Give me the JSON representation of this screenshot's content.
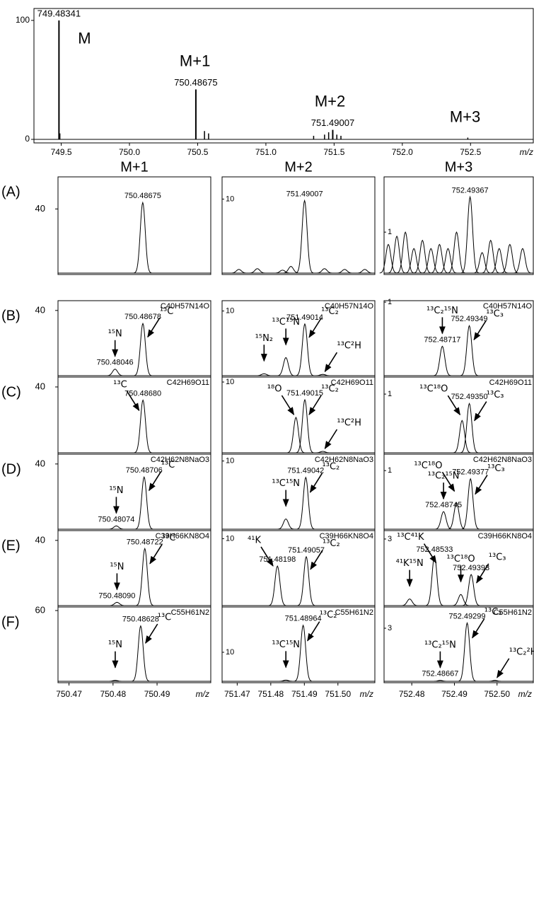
{
  "chart_data": [
    {
      "type": "stick",
      "xlim": [
        749.3,
        752.96
      ],
      "xticks": [
        749.5,
        {
          "value": 750,
          "label": "750.0"
        },
        750.5,
        {
          "value": 751,
          "label": "751.0"
        },
        751.5,
        {
          "value": 752,
          "label": "752.0"
        },
        752.5
      ],
      "xlabel": "m/z",
      "ylim": [
        0,
        110
      ],
      "yticks": [
        0,
        100
      ],
      "x": [
        749.48341,
        750.48675,
        751.49007
      ],
      "x_labels": [
        "749.48341",
        "750.48675",
        "751.49007"
      ],
      "values": [
        100,
        42,
        8
      ],
      "minor_x": [
        749.49,
        750.55,
        750.58,
        751.35,
        751.43,
        751.46,
        751.52,
        751.55,
        752.48
      ],
      "minor_values": [
        5,
        7,
        5,
        3,
        4,
        6,
        4,
        3,
        1.5
      ],
      "annotations": [
        {
          "text": "M",
          "x": 749.67,
          "y": 84
        },
        {
          "text": "M+1",
          "x": 750.48,
          "y": 65
        },
        {
          "text": "M+2",
          "x": 751.47,
          "y": 31
        },
        {
          "text": "M+3",
          "x": 752.46,
          "y": 18
        }
      ]
    },
    {
      "type": "peaks",
      "label": "(A)",
      "title": "M+1",
      "xlim": [
        750.4675,
        750.5022
      ],
      "ylim": [
        0,
        60
      ],
      "yticks": [
        40
      ],
      "x": [
        750.48675
      ],
      "x_labels": [
        "750.48675"
      ],
      "values": [
        44
      ],
      "minor_x": [],
      "minor_values": [],
      "annotations": []
    },
    {
      "type": "peaks",
      "title": "M+2",
      "xlim": [
        751.4655,
        751.511
      ],
      "ylim": [
        0,
        13
      ],
      "yticks": [
        10
      ],
      "x": [
        751.49007
      ],
      "x_labels": [
        "751.49007"
      ],
      "values": [
        9.8
      ],
      "minor_x": [
        751.4705,
        751.476,
        751.4835,
        751.486,
        751.496,
        751.502,
        751.508
      ],
      "minor_values": [
        0.5,
        0.6,
        0.4,
        0.9,
        0.6,
        0.5,
        0.5
      ],
      "annotations": []
    },
    {
      "type": "peaks",
      "title": "M+3",
      "xlim": [
        752.4735,
        752.5085
      ],
      "ylim": [
        0,
        2.35
      ],
      "yticks": [
        1
      ],
      "x": [
        752.49367
      ],
      "x_labels": [
        "752.49367"
      ],
      "values": [
        1.86
      ],
      "minor_x": [
        752.4745,
        752.4765,
        752.4785,
        752.4805,
        752.4825,
        752.4845,
        752.4865,
        752.4885,
        752.4905,
        752.4965,
        752.4985,
        752.5005,
        752.503,
        752.506
      ],
      "minor_values": [
        0.7,
        0.9,
        1.0,
        0.6,
        0.8,
        0.6,
        0.7,
        0.6,
        1.0,
        0.5,
        0.8,
        0.6,
        0.7,
        0.6
      ],
      "annotations": []
    },
    {
      "type": "peaks",
      "label": "(B)",
      "formula": "C40H57N14O",
      "xlim": [
        750.4675,
        750.5022
      ],
      "ylim": [
        0,
        46
      ],
      "yticks": [
        40
      ],
      "x": [
        750.48678,
        750.48046
      ],
      "x_labels": [
        "750.48678",
        "750.48046"
      ],
      "values": [
        32,
        4
      ],
      "minor_x": [],
      "minor_values": [],
      "annotations": [
        {
          "text": "¹⁵N",
          "x": 750.48046,
          "y": 4
        },
        {
          "text": "¹³C",
          "x": 750.4874,
          "y": 22
        }
      ]
    },
    {
      "type": "peaks",
      "formula": "C40H57N14O",
      "xlim": [
        751.4655,
        751.511
      ],
      "ylim": [
        0,
        11.6
      ],
      "yticks": [
        10
      ],
      "x": [
        751.49014
      ],
      "x_labels": [
        "751.49014"
      ],
      "values": [
        8
      ],
      "minor_x": [
        751.4845,
        751.478,
        751.4955
      ],
      "minor_values": [
        2.8,
        0.3,
        0.2
      ],
      "annotations": [
        {
          "text": "¹⁵N₂",
          "x": 751.478,
          "y": 0.3
        },
        {
          "text": "¹³C¹⁵N",
          "x": 751.4845,
          "y": 2.8
        },
        {
          "text": "¹³C₂",
          "x": 751.4908,
          "y": 5.5
        },
        {
          "text": "¹³C²H",
          "x": 751.4955,
          "y": 0.2
        }
      ]
    },
    {
      "type": "peaks",
      "formula": "C40H57N14O",
      "xlim": [
        752.4735,
        752.5085
      ],
      "ylim": [
        0,
        1.02
      ],
      "yticks": [
        1
      ],
      "x": [
        752.49349,
        752.48717
      ],
      "x_labels": [
        "752.49349",
        "752.48717"
      ],
      "values": [
        0.68,
        0.4
      ],
      "minor_x": [],
      "minor_values": [],
      "annotations": [
        {
          "text": "¹³C₂¹⁵N",
          "x": 752.48717,
          "y": 0.4
        },
        {
          "text": "¹³C₃",
          "x": 752.4941,
          "y": 0.45
        }
      ]
    },
    {
      "type": "peaks",
      "label": "(C)",
      "formula": "C42H69O11",
      "xlim": [
        750.4675,
        750.5022
      ],
      "ylim": [
        0,
        46
      ],
      "yticks": [
        40
      ],
      "x": [
        750.4868
      ],
      "x_labels": [
        "750.48680"
      ],
      "values": [
        32
      ],
      "minor_x": [],
      "minor_values": [],
      "annotations": [
        {
          "text": "¹³C",
          "x": 750.4864,
          "y": 24
        }
      ]
    },
    {
      "type": "peaks",
      "formula": "C42H69O11",
      "xlim": [
        751.4655,
        751.511
      ],
      "ylim": [
        0,
        10.7
      ],
      "yticks": [
        10
      ],
      "x": [
        751.49015
      ],
      "x_labels": [
        "751.49015"
      ],
      "values": [
        7.5
      ],
      "minor_x": [
        751.4875,
        751.4955
      ],
      "minor_values": [
        5,
        0.2
      ],
      "annotations": [
        {
          "text": "¹⁸O",
          "x": 751.4875,
          "y": 5
        },
        {
          "text": "¹³C₂",
          "x": 751.4908,
          "y": 5
        },
        {
          "text": "¹³C²H",
          "x": 751.4955,
          "y": 0.2
        }
      ]
    },
    {
      "type": "peaks",
      "formula": "C42H69O11",
      "xlim": [
        752.4735,
        752.5085
      ],
      "ylim": [
        0,
        1.29
      ],
      "yticks": [
        1
      ],
      "x": [
        752.4935
      ],
      "x_labels": [
        "752.49350"
      ],
      "values": [
        0.84
      ],
      "minor_x": [
        752.4918
      ],
      "minor_values": [
        0.55
      ],
      "annotations": [
        {
          "text": "¹³C¹⁸O",
          "x": 752.4918,
          "y": 0.6
        },
        {
          "text": "¹³C₃",
          "x": 752.4942,
          "y": 0.5
        }
      ]
    },
    {
      "type": "peaks",
      "label": "(D)",
      "formula": "C42H62N8NaO3",
      "xlim": [
        750.4675,
        750.5022
      ],
      "ylim": [
        0,
        46
      ],
      "yticks": [
        40
      ],
      "x": [
        750.48706,
        750.48074
      ],
      "x_labels": [
        "750.48706",
        "750.48074"
      ],
      "values": [
        32,
        2
      ],
      "minor_x": [],
      "minor_values": [],
      "annotations": [
        {
          "text": "¹⁵N",
          "x": 750.48074,
          "y": 2
        },
        {
          "text": "¹³C",
          "x": 750.4877,
          "y": 22
        }
      ]
    },
    {
      "type": "peaks",
      "formula": "C42H62N8NaO3",
      "xlim": [
        751.4655,
        751.511
      ],
      "ylim": [
        0,
        11
      ],
      "yticks": [
        10
      ],
      "x": [
        751.49042
      ],
      "x_labels": [
        "751.49042"
      ],
      "values": [
        7.6
      ],
      "minor_x": [
        751.4845
      ],
      "minor_values": [
        1.5
      ],
      "annotations": [
        {
          "text": "¹³C¹⁵N",
          "x": 751.4845,
          "y": 1.5
        },
        {
          "text": "¹³C₂",
          "x": 751.4911,
          "y": 5
        }
      ]
    },
    {
      "type": "peaks",
      "formula": "C42H62N8NaO3",
      "xlim": [
        752.4735,
        752.5085
      ],
      "ylim": [
        0,
        1.28
      ],
      "yticks": [
        1
      ],
      "x": [
        752.49377,
        752.48745
      ],
      "x_labels": [
        "752.49377",
        "752.48745"
      ],
      "values": [
        0.86,
        0.3
      ],
      "minor_x": [
        752.4905
      ],
      "minor_values": [
        0.45
      ],
      "annotations": [
        {
          "text": "¹³C₂¹⁵N",
          "x": 752.48745,
          "y": 0.3
        },
        {
          "text": "¹³C¹⁸O",
          "x": 752.4905,
          "y": 0.6
        },
        {
          "text": "¹³C₃",
          "x": 752.4944,
          "y": 0.55
        }
      ]
    },
    {
      "type": "peaks",
      "label": "(E)",
      "formula": "C39H66KN8O4",
      "xlim": [
        750.4675,
        750.5022
      ],
      "ylim": [
        0,
        46
      ],
      "yticks": [
        40
      ],
      "x": [
        750.48722,
        750.4809
      ],
      "x_labels": [
        "750.48722",
        "750.48090"
      ],
      "values": [
        35,
        2
      ],
      "minor_x": [],
      "minor_values": [],
      "annotations": [
        {
          "text": "¹⁵N",
          "x": 750.4809,
          "y": 2
        },
        {
          "text": "¹³C",
          "x": 750.4879,
          "y": 24
        }
      ]
    },
    {
      "type": "peaks",
      "formula": "C39H66KN8O4",
      "xlim": [
        751.4655,
        751.511
      ],
      "ylim": [
        0,
        11.2
      ],
      "yticks": [
        10
      ],
      "x": [
        751.49057,
        751.48198
      ],
      "x_labels": [
        "751.49057",
        "751.48198"
      ],
      "values": [
        7.3,
        5.9
      ],
      "minor_x": [],
      "minor_values": [],
      "annotations": [
        {
          "text": "⁴¹K",
          "x": 751.4813,
          "y": 5.5
        },
        {
          "text": "¹³C₂",
          "x": 751.4912,
          "y": 5
        }
      ]
    },
    {
      "type": "peaks",
      "formula": "C39H66KN8O4",
      "xlim": [
        752.4735,
        752.5085
      ],
      "ylim": [
        0,
        3.38
      ],
      "yticks": [
        3
      ],
      "x": [
        752.49393,
        752.48533
      ],
      "x_labels": [
        "752.49393",
        "752.48533"
      ],
      "values": [
        1.4,
        2.23
      ],
      "minor_x": [
        752.4795,
        752.4915
      ],
      "minor_values": [
        0.3,
        0.5
      ],
      "annotations": [
        {
          "text": "¹³C⁴¹K",
          "x": 752.4862,
          "y": 1.8
        },
        {
          "text": "⁴¹K¹⁵N",
          "x": 752.4795,
          "y": 0.3
        },
        {
          "text": "¹³C¹⁸O",
          "x": 752.4915,
          "y": 0.5
        },
        {
          "text": "¹³C₃",
          "x": 752.4947,
          "y": 0.9
        }
      ]
    },
    {
      "type": "peaks",
      "label": "(F)",
      "formula": "C55H61N2",
      "xlim": [
        750.4675,
        750.5022
      ],
      "ylim": [
        0,
        63
      ],
      "yticks": [
        60
      ],
      "xticks": [
        750.47,
        750.48,
        750.49
      ],
      "xlabel": "m/z",
      "x": [
        750.48628
      ],
      "x_labels": [
        "750.48628"
      ],
      "values": [
        47
      ],
      "minor_x": [
        750.4805
      ],
      "minor_values": [
        0.8
      ],
      "annotations": [
        {
          "text": "¹⁵N",
          "x": 750.4805,
          "y": 0.8
        },
        {
          "text": "¹³C",
          "x": 750.4869,
          "y": 30
        }
      ]
    },
    {
      "type": "peaks",
      "formula": "C55H61N2",
      "xlim": [
        751.4655,
        751.511
      ],
      "ylim": [
        0,
        25.6
      ],
      "yticks": [
        10
      ],
      "xticks": [
        751.47,
        751.48,
        751.49,
        {
          "value": 751.5,
          "label": "751.50"
        }
      ],
      "xlabel": "m/z",
      "x": [
        751.48964
      ],
      "x_labels": [
        "751.48964"
      ],
      "values": [
        19.3
      ],
      "minor_x": [
        751.4845
      ],
      "minor_values": [
        0.4
      ],
      "annotations": [
        {
          "text": "¹³C¹⁵N",
          "x": 751.4845,
          "y": 0.4
        },
        {
          "text": "¹³C₂",
          "x": 751.4903,
          "y": 13
        }
      ]
    },
    {
      "type": "peaks",
      "formula": "C55H61N2",
      "xlim": [
        752.4735,
        752.5085
      ],
      "ylim": [
        0,
        4.2
      ],
      "yticks": [
        3
      ],
      "xticks": [
        752.48,
        752.49,
        {
          "value": 752.5,
          "label": "752.50"
        }
      ],
      "xlabel": "m/z",
      "x": [
        752.49299,
        752.48667
      ],
      "x_labels": [
        "752.49299",
        "752.48667"
      ],
      "values": [
        3.3,
        0.05
      ],
      "minor_x": [
        752.4995
      ],
      "minor_values": [
        0.05
      ],
      "annotations": [
        {
          "text": "¹³C₂¹⁵N",
          "x": 752.48667,
          "y": 0.05
        },
        {
          "text": "¹³C₃",
          "x": 752.4937,
          "y": 2.3
        },
        {
          "text": "¹³C₂²H",
          "x": 752.4995,
          "y": 0.05
        }
      ]
    }
  ]
}
